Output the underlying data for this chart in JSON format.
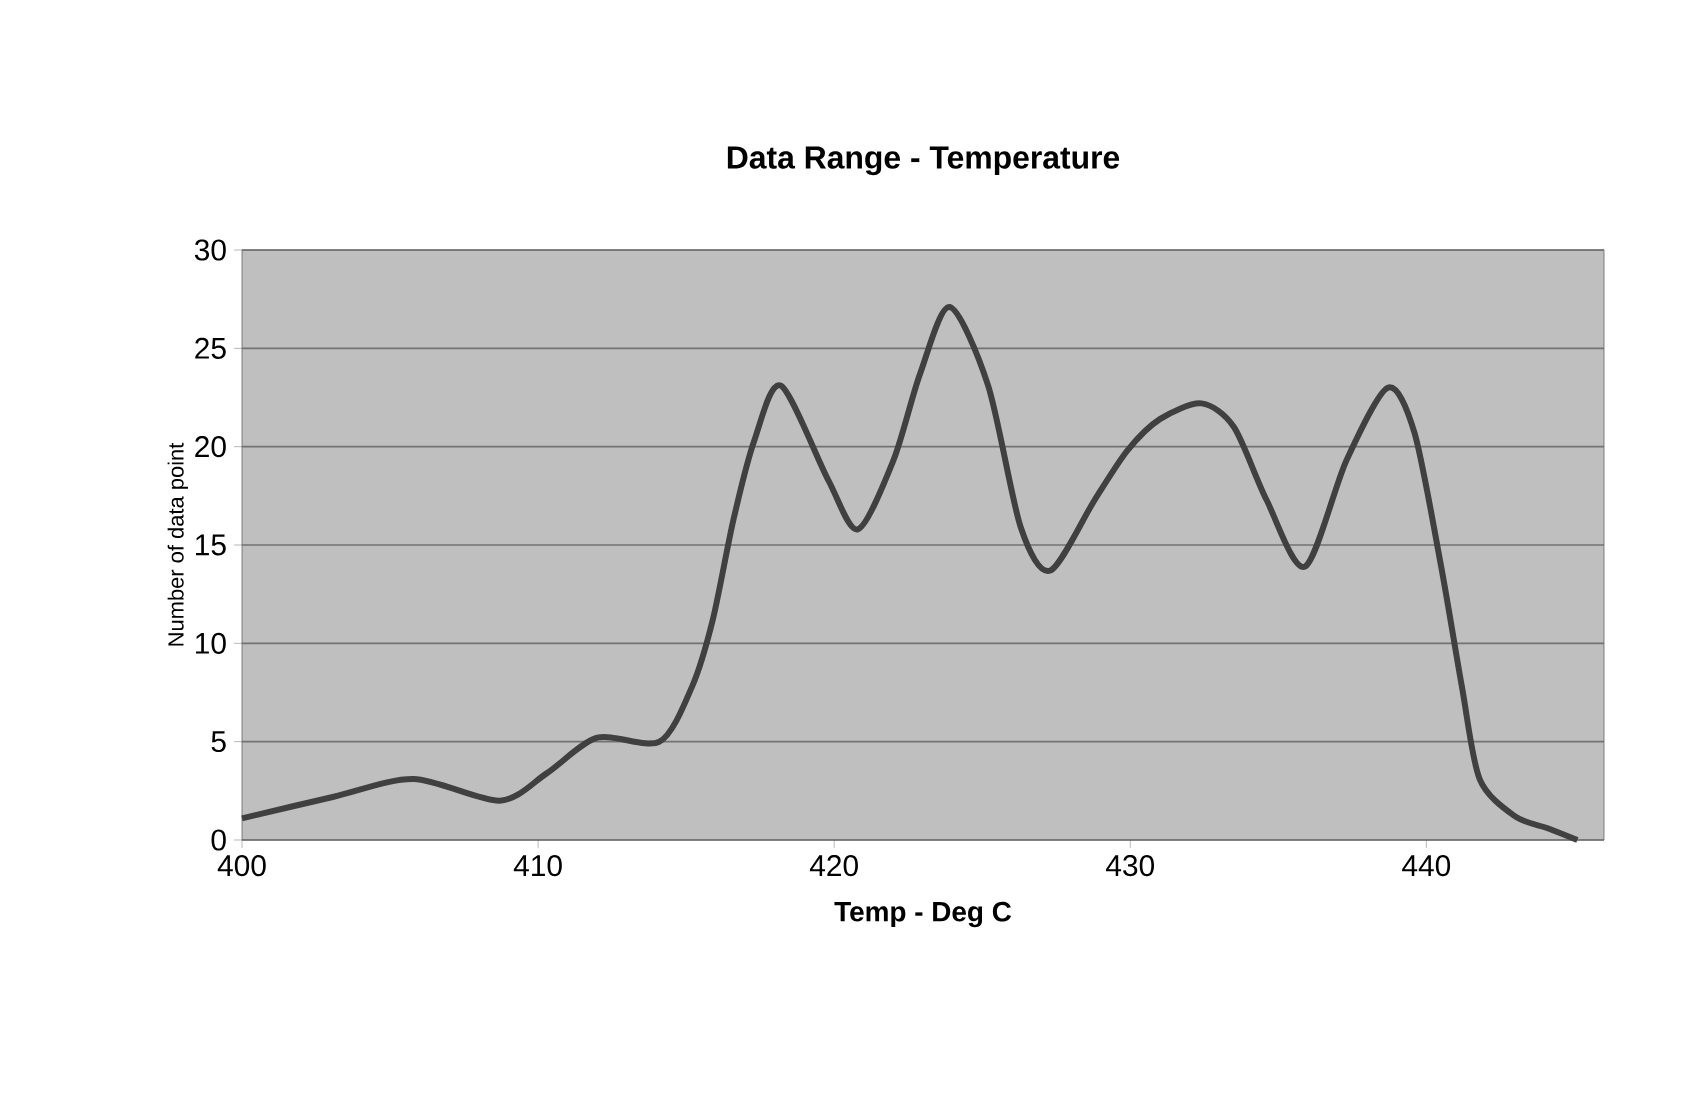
{
  "chart_data": {
    "type": "line",
    "title": "Data Range - Temperature",
    "xlabel": "Temp - Deg C",
    "ylabel": "Number of data point",
    "x": [
      400,
      403.1,
      405.8,
      408.7,
      410.3,
      412.0,
      414.1,
      415.2,
      415.9,
      416.6,
      417.3,
      418.2,
      419.8,
      420.8,
      422.0,
      422.9,
      423.9,
      425.2,
      426.3,
      427.3,
      428.8,
      429.9,
      431.0,
      432.4,
      433.5,
      434.6,
      435.9,
      437.3,
      438.7,
      439.6,
      440.5,
      441.2,
      441.8,
      443.0,
      444.1,
      445.1
    ],
    "series": [
      {
        "color": "#404040",
        "values": [
          1.1,
          2.2,
          3.1,
          2.0,
          3.4,
          5.2,
          5.0,
          7.8,
          11.2,
          16.3,
          20.3,
          23.1,
          18.3,
          15.8,
          19.3,
          23.7,
          27.1,
          23.1,
          15.9,
          13.7,
          17.3,
          19.8,
          21.4,
          22.2,
          21.0,
          17.3,
          13.9,
          19.3,
          23.0,
          20.7,
          13.9,
          7.8,
          3.1,
          1.2,
          0.6,
          0
        ]
      }
    ],
    "xlim": [
      400,
      446
    ],
    "ylim": [
      0,
      30
    ],
    "xticks": [
      400,
      410,
      420,
      430,
      440
    ],
    "yticks": [
      0,
      5,
      10,
      15,
      20,
      25,
      30
    ],
    "grid": "y",
    "marker": "none",
    "line_style": "solid"
  }
}
